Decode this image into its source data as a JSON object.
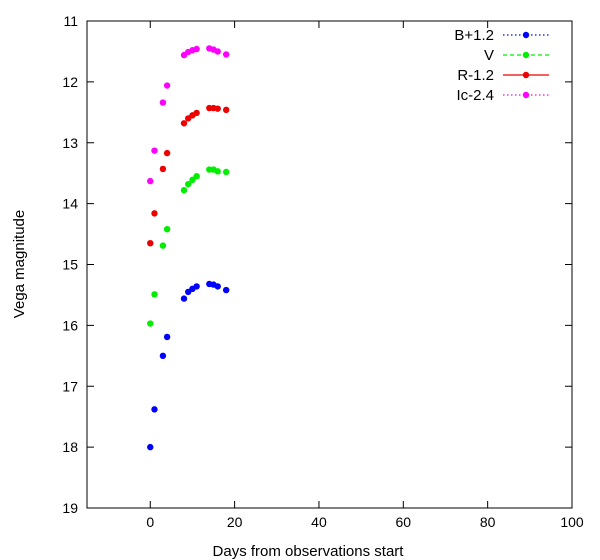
{
  "chart_data": {
    "type": "scatter",
    "title": "",
    "xlabel": "Days from observations start",
    "ylabel": "Vega magnitude",
    "xlim": [
      -15,
      100
    ],
    "ylim": [
      11,
      19
    ],
    "y_inverted": true,
    "xticks": [
      0,
      20,
      40,
      60,
      80,
      100
    ],
    "yticks": [
      11,
      12,
      13,
      14,
      15,
      16,
      17,
      18,
      19
    ],
    "grid": false,
    "legend_position": "top-right",
    "series": [
      {
        "name": "B+1.2",
        "color": "#0000ff",
        "line_style": "dotted",
        "x": [
          0,
          1,
          3,
          4,
          8,
          9,
          10,
          11,
          14,
          15,
          16,
          18
        ],
        "y": [
          18.0,
          17.38,
          16.5,
          16.19,
          15.56,
          15.45,
          15.4,
          15.36,
          15.32,
          15.33,
          15.36,
          15.42
        ]
      },
      {
        "name": "V",
        "color": "#00ee00",
        "line_style": "dashed",
        "x": [
          0,
          1,
          3,
          4,
          8,
          9,
          10,
          11,
          14,
          15,
          16,
          18
        ],
        "y": [
          15.97,
          15.49,
          14.69,
          14.42,
          13.78,
          13.68,
          13.61,
          13.55,
          13.44,
          13.44,
          13.47,
          13.48
        ]
      },
      {
        "name": "R-1.2",
        "color": "#ee0000",
        "line_style": "solid",
        "x": [
          0,
          1,
          3,
          4,
          8,
          9,
          10,
          11,
          14,
          15,
          16,
          18
        ],
        "y": [
          14.65,
          14.16,
          13.43,
          13.17,
          12.68,
          12.6,
          12.55,
          12.51,
          12.43,
          12.43,
          12.44,
          12.46
        ]
      },
      {
        "name": "Ic-2.4",
        "color": "#ff00ff",
        "line_style": "dotted",
        "x": [
          0,
          1,
          3,
          4,
          8,
          9,
          10,
          11,
          14,
          15,
          16,
          18
        ],
        "y": [
          13.63,
          13.13,
          12.34,
          12.06,
          11.56,
          11.51,
          11.48,
          11.46,
          11.45,
          11.47,
          11.5,
          11.55
        ]
      }
    ]
  }
}
